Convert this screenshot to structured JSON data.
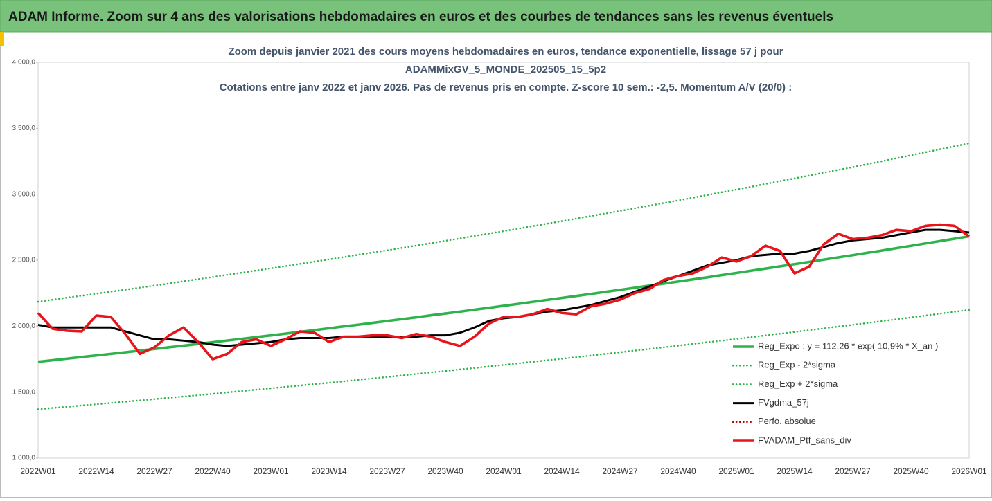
{
  "header": {
    "title": "ADAM Informe. Zoom sur 4 ans des valorisations hebdomadaires en euros et des courbes de tendances sans les revenus éventuels"
  },
  "chart_data": {
    "type": "line",
    "title_lines": [
      "Zoom depuis janvier 2021 des cours moyens hebdomadaires  en euros, tendance exponentielle, lissage 57 j pour",
      "ADAMMixGV_5_MONDE_202505_15_5p2",
      "Cotations entre janv 2022 et janv 2026. Pas de revenus pris en compte. Z-score 10 sem.: -2,5. Momentum A/V (20/0) :"
    ],
    "categories": [
      "2022W01",
      null,
      null,
      null,
      "2022W14",
      null,
      null,
      null,
      "2022W27",
      null,
      null,
      null,
      "2022W40",
      null,
      null,
      null,
      "2023W01",
      null,
      null,
      null,
      "2023W14",
      null,
      null,
      null,
      "2023W27",
      null,
      null,
      null,
      "2023W40",
      null,
      null,
      null,
      "2024W01",
      null,
      null,
      null,
      "2024W14",
      null,
      null,
      null,
      "2024W27",
      null,
      null,
      null,
      "2024W40",
      null,
      null,
      null,
      "2025W01",
      null,
      null,
      null,
      "2025W14",
      null,
      null,
      null,
      "2025W27",
      null,
      null,
      null,
      "2025W40",
      null,
      null,
      null,
      "2026W01"
    ],
    "ylim": [
      1000,
      4000
    ],
    "yticks": [
      {
        "value": 1000,
        "label": "1 000,0"
      },
      {
        "value": 1500,
        "label": "1 500,0"
      },
      {
        "value": 2000,
        "label": "2 000,0"
      },
      {
        "value": 2500,
        "label": "2 500,0"
      },
      {
        "value": 3000,
        "label": "3 000,0"
      },
      {
        "value": 3500,
        "label": "3 500,0"
      },
      {
        "value": 4000,
        "label": "4 000,0"
      }
    ],
    "grid": false,
    "legend": "lower right",
    "series": [
      {
        "name": "Reg_Expo : y = 112,26 * exp( 10,9% *  X_an )",
        "color": "#2eb24b",
        "style": "solid",
        "values": [
          1730,
          1742,
          1754,
          1766,
          1778,
          1790,
          1802,
          1815,
          1827,
          1840,
          1852,
          1865,
          1878,
          1891,
          1904,
          1917,
          1930,
          1943,
          1957,
          1970,
          1984,
          1998,
          2011,
          2025,
          2039,
          2053,
          2067,
          2082,
          2096,
          2110,
          2125,
          2139,
          2154,
          2169,
          2184,
          2199,
          2214,
          2229,
          2244,
          2260,
          2275,
          2291,
          2307,
          2322,
          2338,
          2354,
          2370,
          2387,
          2403,
          2420,
          2436,
          2453,
          2470,
          2487,
          2504,
          2521,
          2538,
          2556,
          2573,
          2591,
          2609,
          2627,
          2645,
          2663,
          2681
        ]
      },
      {
        "name": "Reg_Exp - 2*sigma",
        "color": "#2eb24b",
        "style": "dotted",
        "values": [
          1370,
          1380,
          1389,
          1399,
          1408,
          1418,
          1428,
          1437,
          1447,
          1457,
          1467,
          1477,
          1487,
          1498,
          1508,
          1519,
          1529,
          1540,
          1550,
          1561,
          1571,
          1582,
          1593,
          1604,
          1615,
          1626,
          1638,
          1649,
          1660,
          1672,
          1683,
          1695,
          1706,
          1718,
          1730,
          1741,
          1753,
          1765,
          1778,
          1790,
          1802,
          1815,
          1827,
          1840,
          1852,
          1865,
          1878,
          1890,
          1903,
          1916,
          1930,
          1943,
          1956,
          1970,
          1983,
          1997,
          2010,
          2024,
          2038,
          2052,
          2066,
          2080,
          2095,
          2109,
          2123
        ]
      },
      {
        "name": "Reg_Exp + 2*sigma",
        "color": "#2eb24b",
        "style": "dotted",
        "values": [
          2185,
          2200,
          2216,
          2231,
          2246,
          2261,
          2276,
          2292,
          2307,
          2323,
          2340,
          2356,
          2372,
          2389,
          2405,
          2422,
          2438,
          2455,
          2472,
          2489,
          2506,
          2523,
          2541,
          2558,
          2575,
          2593,
          2611,
          2629,
          2647,
          2665,
          2684,
          2702,
          2720,
          2739,
          2758,
          2777,
          2796,
          2815,
          2835,
          2854,
          2873,
          2893,
          2913,
          2933,
          2953,
          2974,
          2994,
          3015,
          3035,
          3056,
          3078,
          3099,
          3120,
          3141,
          3163,
          3184,
          3205,
          3228,
          3250,
          3273,
          3295,
          3318,
          3341,
          3363,
          3386
        ]
      },
      {
        "name": "FVgdma_57j",
        "color": "#000000",
        "style": "solid",
        "values": [
          2010,
          1990,
          1990,
          1990,
          1990,
          1990,
          1960,
          1930,
          1900,
          1900,
          1890,
          1880,
          1860,
          1850,
          1860,
          1870,
          1880,
          1900,
          1910,
          1910,
          1910,
          1920,
          1920,
          1920,
          1920,
          1920,
          1920,
          1930,
          1930,
          1950,
          1990,
          2040,
          2060,
          2070,
          2090,
          2110,
          2120,
          2140,
          2160,
          2190,
          2220,
          2260,
          2300,
          2340,
          2380,
          2420,
          2460,
          2480,
          2500,
          2530,
          2540,
          2550,
          2550,
          2570,
          2600,
          2630,
          2650,
          2660,
          2670,
          2690,
          2710,
          2730,
          2730,
          2720,
          2710
        ]
      },
      {
        "name": "Perfo. absolue",
        "color": "#c00000",
        "style": "dotted",
        "values": [
          null,
          null,
          null,
          null,
          null,
          null,
          null,
          null,
          null,
          null,
          null,
          null,
          null,
          null,
          null,
          null,
          null,
          null,
          null,
          null,
          null,
          null,
          null,
          null,
          null,
          null,
          null,
          null,
          null,
          null,
          null,
          null,
          null,
          null,
          null,
          null,
          null,
          null,
          null,
          null,
          null,
          null,
          null,
          null,
          null,
          null,
          null,
          null,
          null,
          null,
          null,
          null,
          null,
          null,
          null,
          null,
          null,
          null,
          null,
          null,
          null,
          null,
          null,
          null,
          null
        ]
      },
      {
        "name": "FVADAM_Ptf_sans_div",
        "color": "#e8141b",
        "style": "solid",
        "values": [
          2100,
          1980,
          1965,
          1960,
          2080,
          2070,
          1940,
          1790,
          1840,
          1930,
          1990,
          1880,
          1750,
          1790,
          1880,
          1900,
          1850,
          1900,
          1960,
          1950,
          1880,
          1920,
          1920,
          1930,
          1930,
          1910,
          1940,
          1920,
          1880,
          1850,
          1920,
          2020,
          2070,
          2070,
          2090,
          2130,
          2100,
          2090,
          2150,
          2170,
          2200,
          2250,
          2280,
          2350,
          2380,
          2400,
          2450,
          2520,
          2490,
          2530,
          2610,
          2570,
          2400,
          2450,
          2620,
          2700,
          2660,
          2670,
          2690,
          2730,
          2720,
          2760,
          2770,
          2760,
          2680
        ]
      }
    ]
  }
}
